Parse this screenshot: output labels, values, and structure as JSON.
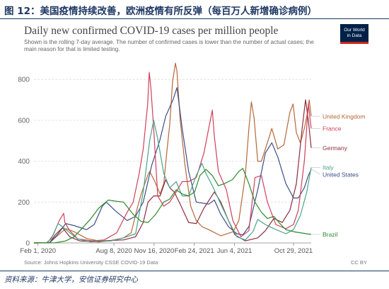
{
  "figure": {
    "title": "图 12：美国疫情持续改善，欧洲疫情有所反弹（每百万人新增确诊病例）",
    "source": "资料来源：牛津大学，安信证券研究中心"
  },
  "chart": {
    "title": "Daily new confirmed COVID-19 cases per million people",
    "subtitle": "Shown is the rolling 7-day average. The number of confirmed cases is lower than the number of actual cases; the main reason for that is limited testing.",
    "logo_line1": "Our World",
    "logo_line2": "in Data",
    "source": "Source: Johns Hopkins University CSSE COVID-19 Data",
    "license": "CC BY"
  },
  "colors": {
    "United Kingdom": "#b5683a",
    "Germany": "#8c2d3f",
    "United States": "#3d4e86",
    "France": "#d0405c",
    "Italy": "#4aa38a",
    "Brazil": "#2c8a2a",
    "grid": "#dddddd",
    "axis": "#999999"
  },
  "chart_data": {
    "type": "line",
    "title": "Daily new confirmed COVID-19 cases per million people",
    "ylim": [
      0,
      870
    ],
    "xlim": [
      "2020-01-22",
      "2021-12-12"
    ],
    "y_ticks": [
      0,
      200,
      400,
      600,
      800
    ],
    "x_ticks": [
      {
        "date": "2020-02-01",
        "label": "Feb 1, 2020"
      },
      {
        "date": "2020-08-08",
        "label": "Aug 8, 2020"
      },
      {
        "date": "2020-11-16",
        "label": "Nov 16, 2020"
      },
      {
        "date": "2021-02-24",
        "label": "Feb 24, 2021"
      },
      {
        "date": "2021-06-04",
        "label": "Jun 4, 2021"
      },
      {
        "date": "2021-10-29",
        "label": "Oct 29, 2021"
      }
    ],
    "grid": true,
    "legend": "right, end of lines",
    "series": [
      {
        "name": "United Kingdom",
        "points": [
          [
            "2020-01-22",
            0
          ],
          [
            "2020-03-01",
            1
          ],
          [
            "2020-03-20",
            35
          ],
          [
            "2020-04-10",
            70
          ],
          [
            "2020-05-01",
            55
          ],
          [
            "2020-06-01",
            22
          ],
          [
            "2020-07-01",
            10
          ],
          [
            "2020-08-01",
            12
          ],
          [
            "2020-09-01",
            25
          ],
          [
            "2020-09-20",
            50
          ],
          [
            "2020-10-05",
            170
          ],
          [
            "2020-10-15",
            240
          ],
          [
            "2020-10-31",
            330
          ],
          [
            "2020-11-05",
            350
          ],
          [
            "2020-11-18",
            300
          ],
          [
            "2020-12-01",
            240
          ],
          [
            "2020-12-10",
            290
          ],
          [
            "2020-12-18",
            450
          ],
          [
            "2020-12-25",
            580
          ],
          [
            "2021-01-01",
            790
          ],
          [
            "2021-01-08",
            880
          ],
          [
            "2021-01-12",
            840
          ],
          [
            "2021-01-20",
            600
          ],
          [
            "2021-02-01",
            380
          ],
          [
            "2021-02-15",
            180
          ],
          [
            "2021-03-01",
            110
          ],
          [
            "2021-03-15",
            80
          ],
          [
            "2021-04-01",
            65
          ],
          [
            "2021-05-01",
            35
          ],
          [
            "2021-06-01",
            55
          ],
          [
            "2021-06-15",
            110
          ],
          [
            "2021-07-01",
            330
          ],
          [
            "2021-07-10",
            560
          ],
          [
            "2021-07-16",
            690
          ],
          [
            "2021-07-23",
            610
          ],
          [
            "2021-08-01",
            400
          ],
          [
            "2021-08-10",
            400
          ],
          [
            "2021-08-25",
            490
          ],
          [
            "2021-09-05",
            560
          ],
          [
            "2021-09-20",
            460
          ],
          [
            "2021-10-05",
            480
          ],
          [
            "2021-10-20",
            640
          ],
          [
            "2021-10-28",
            680
          ],
          [
            "2021-11-05",
            540
          ],
          [
            "2021-11-15",
            490
          ],
          [
            "2021-11-25",
            560
          ],
          [
            "2021-12-01",
            620
          ],
          [
            "2021-12-07",
            700
          ],
          [
            "2021-12-12",
            620
          ]
        ]
      },
      {
        "name": "Germany",
        "points": [
          [
            "2020-01-22",
            0
          ],
          [
            "2020-03-01",
            1
          ],
          [
            "2020-03-15",
            40
          ],
          [
            "2020-04-02",
            75
          ],
          [
            "2020-04-20",
            30
          ],
          [
            "2020-05-15",
            10
          ],
          [
            "2020-07-01",
            5
          ],
          [
            "2020-08-01",
            12
          ],
          [
            "2020-09-01",
            15
          ],
          [
            "2020-10-01",
            30
          ],
          [
            "2020-10-20",
            100
          ],
          [
            "2020-11-01",
            200
          ],
          [
            "2020-11-15",
            230
          ],
          [
            "2020-12-01",
            230
          ],
          [
            "2020-12-15",
            310
          ],
          [
            "2020-12-25",
            270
          ],
          [
            "2021-01-05",
            250
          ],
          [
            "2021-01-20",
            190
          ],
          [
            "2021-02-10",
            100
          ],
          [
            "2021-03-01",
            95
          ],
          [
            "2021-03-20",
            170
          ],
          [
            "2021-04-15",
            250
          ],
          [
            "2021-05-01",
            200
          ],
          [
            "2021-05-20",
            110
          ],
          [
            "2021-06-05",
            40
          ],
          [
            "2021-07-01",
            10
          ],
          [
            "2021-08-01",
            25
          ],
          [
            "2021-08-20",
            60
          ],
          [
            "2021-09-10",
            120
          ],
          [
            "2021-10-01",
            100
          ],
          [
            "2021-10-20",
            160
          ],
          [
            "2021-11-05",
            290
          ],
          [
            "2021-11-20",
            570
          ],
          [
            "2021-11-28",
            700
          ],
          [
            "2021-12-05",
            600
          ],
          [
            "2021-12-12",
            465
          ]
        ]
      },
      {
        "name": "United States",
        "points": [
          [
            "2020-01-22",
            0
          ],
          [
            "2020-03-01",
            1
          ],
          [
            "2020-03-20",
            40
          ],
          [
            "2020-04-10",
            95
          ],
          [
            "2020-05-01",
            85
          ],
          [
            "2020-06-01",
            65
          ],
          [
            "2020-06-20",
            90
          ],
          [
            "2020-07-10",
            180
          ],
          [
            "2020-07-20",
            200
          ],
          [
            "2020-08-10",
            160
          ],
          [
            "2020-09-10",
            110
          ],
          [
            "2020-10-01",
            130
          ],
          [
            "2020-10-20",
            200
          ],
          [
            "2020-11-10",
            380
          ],
          [
            "2020-11-30",
            500
          ],
          [
            "2020-12-15",
            620
          ],
          [
            "2021-01-02",
            700
          ],
          [
            "2021-01-12",
            760
          ],
          [
            "2021-01-25",
            560
          ],
          [
            "2021-02-10",
            350
          ],
          [
            "2021-03-01",
            200
          ],
          [
            "2021-04-01",
            190
          ],
          [
            "2021-04-15",
            210
          ],
          [
            "2021-05-01",
            140
          ],
          [
            "2021-05-20",
            80
          ],
          [
            "2021-06-10",
            45
          ],
          [
            "2021-06-25",
            40
          ],
          [
            "2021-07-10",
            80
          ],
          [
            "2021-08-01",
            260
          ],
          [
            "2021-08-20",
            440
          ],
          [
            "2021-09-05",
            490
          ],
          [
            "2021-09-20",
            420
          ],
          [
            "2021-10-10",
            290
          ],
          [
            "2021-10-29",
            220
          ],
          [
            "2021-11-10",
            220
          ],
          [
            "2021-11-25",
            270
          ],
          [
            "2021-12-05",
            330
          ],
          [
            "2021-12-12",
            360
          ]
        ]
      },
      {
        "name": "France",
        "points": [
          [
            "2020-01-22",
            0
          ],
          [
            "2020-02-25",
            1
          ],
          [
            "2020-03-10",
            40
          ],
          [
            "2020-03-25",
            110
          ],
          [
            "2020-04-05",
            145
          ],
          [
            "2020-04-08",
            100
          ],
          [
            "2020-04-20",
            60
          ],
          [
            "2020-05-10",
            20
          ],
          [
            "2020-06-15",
            10
          ],
          [
            "2020-07-15",
            15
          ],
          [
            "2020-08-15",
            50
          ],
          [
            "2020-09-10",
            150
          ],
          [
            "2020-09-25",
            200
          ],
          [
            "2020-10-10",
            340
          ],
          [
            "2020-10-20",
            460
          ],
          [
            "2020-10-31",
            680
          ],
          [
            "2020-11-04",
            835
          ],
          [
            "2020-11-08",
            760
          ],
          [
            "2020-11-15",
            560
          ],
          [
            "2020-11-25",
            230
          ],
          [
            "2020-12-10",
            180
          ],
          [
            "2020-12-25",
            200
          ],
          [
            "2021-01-10",
            250
          ],
          [
            "2021-01-25",
            300
          ],
          [
            "2021-02-10",
            300
          ],
          [
            "2021-03-01",
            320
          ],
          [
            "2021-03-20",
            440
          ],
          [
            "2021-04-01",
            560
          ],
          [
            "2021-04-10",
            650
          ],
          [
            "2021-04-15",
            520
          ],
          [
            "2021-04-25",
            350
          ],
          [
            "2021-05-15",
            260
          ],
          [
            "2021-05-31",
            110
          ],
          [
            "2021-06-20",
            30
          ],
          [
            "2021-07-10",
            60
          ],
          [
            "2021-07-25",
            320
          ],
          [
            "2021-08-10",
            330
          ],
          [
            "2021-08-25",
            200
          ],
          [
            "2021-09-15",
            90
          ],
          [
            "2021-10-10",
            70
          ],
          [
            "2021-10-29",
            90
          ],
          [
            "2021-11-10",
            160
          ],
          [
            "2021-11-25",
            400
          ],
          [
            "2021-12-05",
            680
          ],
          [
            "2021-12-12",
            560
          ]
        ]
      },
      {
        "name": "Italy",
        "points": [
          [
            "2020-01-22",
            0
          ],
          [
            "2020-02-22",
            1
          ],
          [
            "2020-03-05",
            20
          ],
          [
            "2020-03-22",
            95
          ],
          [
            "2020-04-05",
            75
          ],
          [
            "2020-04-20",
            50
          ],
          [
            "2020-05-10",
            20
          ],
          [
            "2020-06-10",
            5
          ],
          [
            "2020-08-01",
            10
          ],
          [
            "2020-09-01",
            25
          ],
          [
            "2020-10-01",
            45
          ],
          [
            "2020-10-20",
            250
          ],
          [
            "2020-11-05",
            500
          ],
          [
            "2020-11-15",
            600
          ],
          [
            "2020-11-25",
            510
          ],
          [
            "2020-12-10",
            340
          ],
          [
            "2020-12-25",
            270
          ],
          [
            "2021-01-10",
            300
          ],
          [
            "2021-01-25",
            230
          ],
          [
            "2021-02-10",
            230
          ],
          [
            "2021-03-01",
            330
          ],
          [
            "2021-03-15",
            390
          ],
          [
            "2021-03-25",
            340
          ],
          [
            "2021-04-10",
            280
          ],
          [
            "2021-05-01",
            190
          ],
          [
            "2021-05-20",
            110
          ],
          [
            "2021-06-10",
            30
          ],
          [
            "2021-07-01",
            15
          ],
          [
            "2021-07-20",
            55
          ],
          [
            "2021-08-01",
            115
          ],
          [
            "2021-08-20",
            90
          ],
          [
            "2021-09-10",
            70
          ],
          [
            "2021-10-10",
            45
          ],
          [
            "2021-10-29",
            65
          ],
          [
            "2021-11-15",
            135
          ],
          [
            "2021-12-01",
            250
          ],
          [
            "2021-12-12",
            370
          ]
        ]
      },
      {
        "name": "Brazil",
        "points": [
          [
            "2020-01-22",
            0
          ],
          [
            "2020-03-15",
            1
          ],
          [
            "2020-04-10",
            10
          ],
          [
            "2020-05-01",
            30
          ],
          [
            "2020-05-20",
            70
          ],
          [
            "2020-06-10",
            115
          ],
          [
            "2020-07-01",
            170
          ],
          [
            "2020-07-25",
            210
          ],
          [
            "2020-08-10",
            205
          ],
          [
            "2020-09-01",
            200
          ],
          [
            "2020-09-25",
            140
          ],
          [
            "2020-10-15",
            105
          ],
          [
            "2020-11-01",
            100
          ],
          [
            "2020-11-20",
            140
          ],
          [
            "2020-12-10",
            200
          ],
          [
            "2020-12-25",
            215
          ],
          [
            "2021-01-10",
            260
          ],
          [
            "2021-01-25",
            240
          ],
          [
            "2021-02-10",
            230
          ],
          [
            "2021-02-25",
            250
          ],
          [
            "2021-03-10",
            330
          ],
          [
            "2021-03-25",
            360
          ],
          [
            "2021-04-10",
            330
          ],
          [
            "2021-04-25",
            280
          ],
          [
            "2021-05-10",
            290
          ],
          [
            "2021-05-30",
            310
          ],
          [
            "2021-06-15",
            350
          ],
          [
            "2021-06-25",
            365
          ],
          [
            "2021-07-10",
            290
          ],
          [
            "2021-07-25",
            200
          ],
          [
            "2021-08-10",
            150
          ],
          [
            "2021-08-25",
            120
          ],
          [
            "2021-09-10",
            130
          ],
          [
            "2021-09-25",
            95
          ],
          [
            "2021-10-10",
            65
          ],
          [
            "2021-10-29",
            55
          ],
          [
            "2021-11-15",
            50
          ],
          [
            "2021-11-30",
            45
          ],
          [
            "2021-12-12",
            42
          ]
        ]
      }
    ]
  }
}
